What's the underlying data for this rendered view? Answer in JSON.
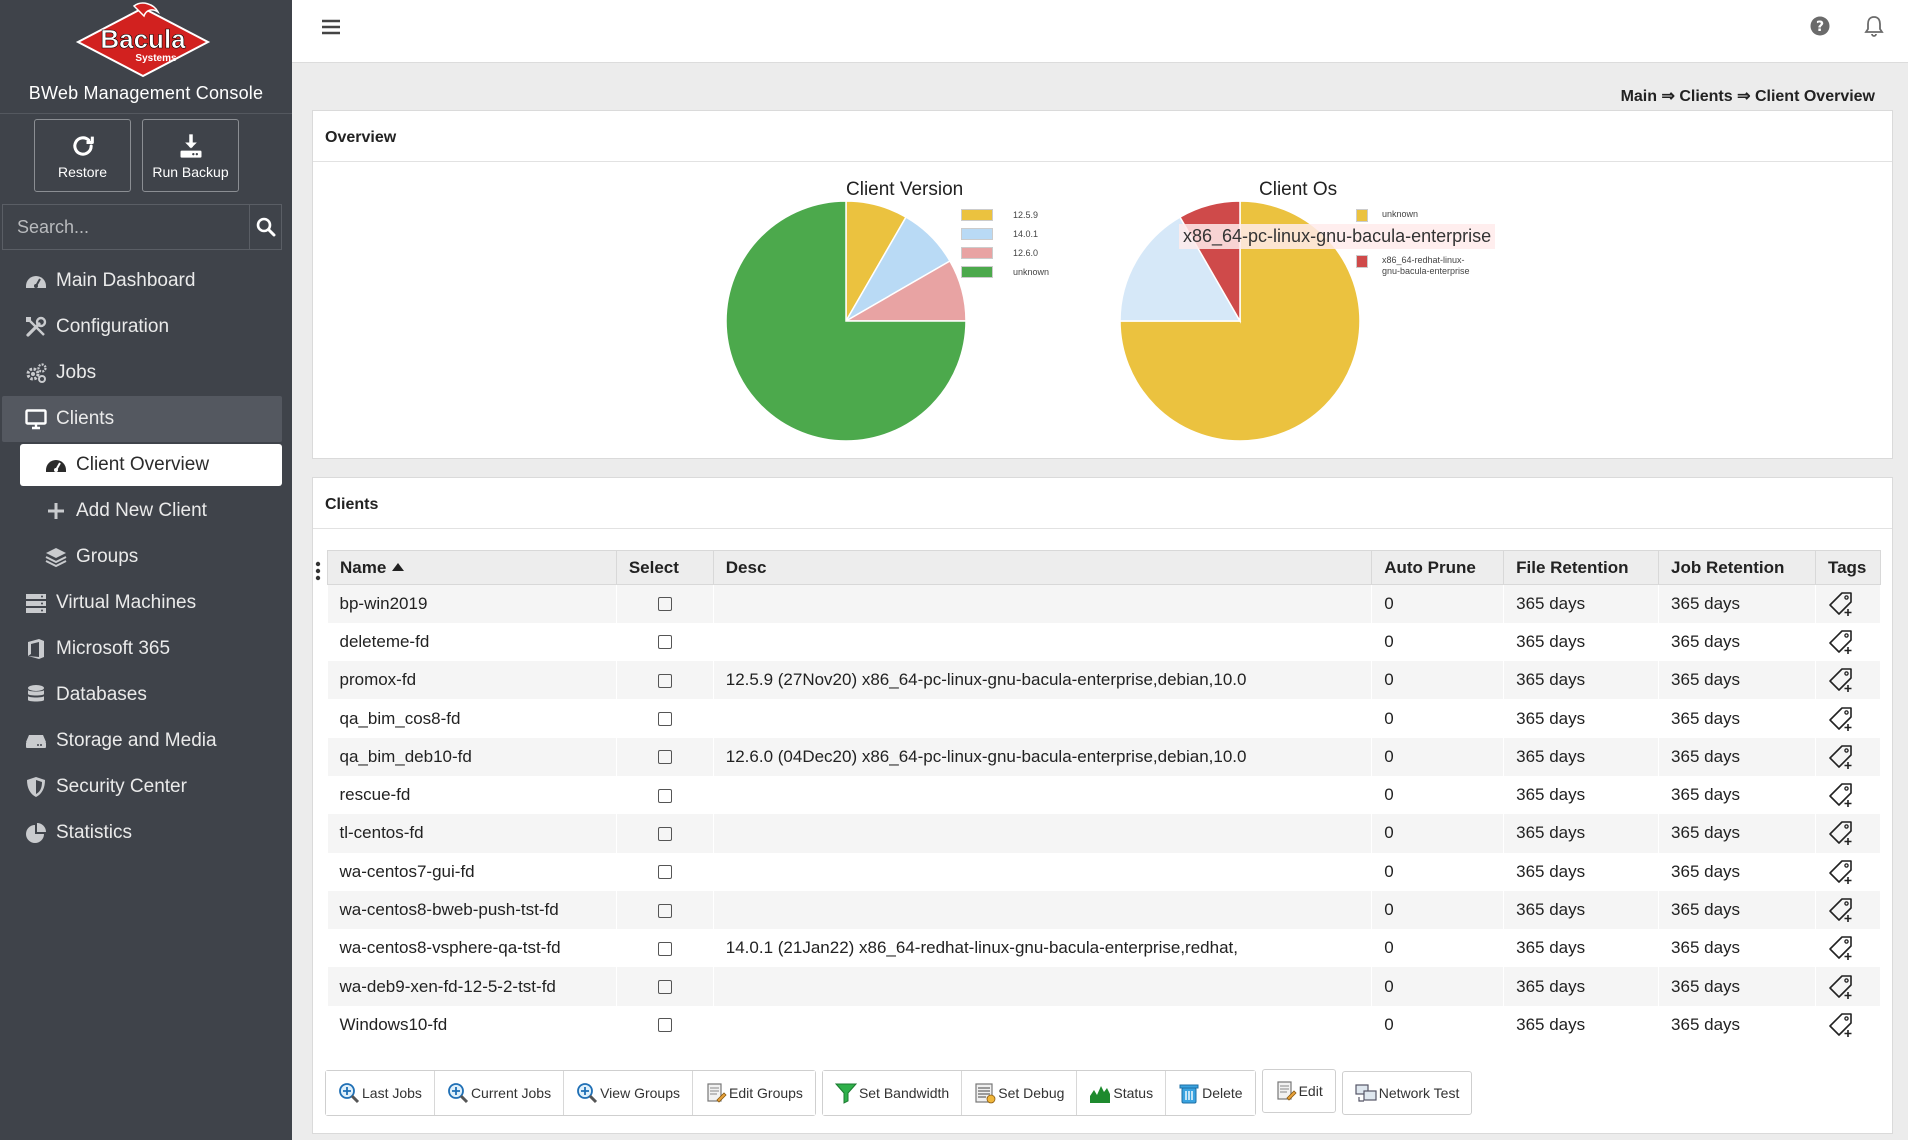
{
  "app": {
    "logo_text": "Bacula",
    "logo_subtext": "Systems",
    "console_title": "BWeb Management Console"
  },
  "quick_actions": {
    "restore": "Restore",
    "run_backup": "Run Backup"
  },
  "search": {
    "placeholder": "Search..."
  },
  "nav": {
    "main_dashboard": "Main Dashboard",
    "configuration": "Configuration",
    "jobs": "Jobs",
    "clients": "Clients",
    "client_overview": "Client Overview",
    "add_new_client": "Add New Client",
    "groups": "Groups",
    "virtual_machines": "Virtual Machines",
    "microsoft_365": "Microsoft 365",
    "databases": "Databases",
    "storage_and_media": "Storage and Media",
    "security_center": "Security Center",
    "statistics": "Statistics"
  },
  "breadcrumb": {
    "main": "Main",
    "sep": " ⇒ ",
    "clients": "Clients",
    "current": "Client Overview"
  },
  "overview": {
    "title": "Overview",
    "tooltip": "x86_64-pc-linux-gnu-bacula-enterprise"
  },
  "chart_data": [
    {
      "type": "pie",
      "title": "Client Version",
      "categories": [
        "12.5.9",
        "14.0.1",
        "12.6.0",
        "unknown"
      ],
      "values": [
        1,
        1,
        1,
        9
      ],
      "colors": [
        "#ebc23f",
        "#b9daf5",
        "#e8a3a3",
        "#4ca94c"
      ],
      "legend": "right"
    },
    {
      "type": "pie",
      "title": "Client Os",
      "categories": [
        "unknown",
        "x86_64-pc-linux-gnu-bacula-enterprise",
        "x86_64-redhat-linux-gnu-bacula-enterprise"
      ],
      "legend_labels": [
        "unknown",
        "x86_64-redhat-linux-\ngnu-bacula-enterprise"
      ],
      "values": [
        9,
        2,
        1
      ],
      "colors": [
        "#ebc23f",
        "#d6e8f8",
        "#cf4a4a"
      ],
      "legend": "right"
    }
  ],
  "clients": {
    "title": "Clients",
    "columns": {
      "name": "Name",
      "select": "Select",
      "desc": "Desc",
      "auto_prune": "Auto Prune",
      "file_retention": "File Retention",
      "job_retention": "Job Retention",
      "tags": "Tags"
    },
    "rows": [
      {
        "name": "bp-win2019",
        "desc": "",
        "auto_prune": "0",
        "file_retention": "365 days",
        "job_retention": "365 days"
      },
      {
        "name": "deleteme-fd",
        "desc": "",
        "auto_prune": "0",
        "file_retention": "365 days",
        "job_retention": "365 days"
      },
      {
        "name": "promox-fd",
        "desc": "12.5.9 (27Nov20) x86_64-pc-linux-gnu-bacula-enterprise,debian,10.0",
        "auto_prune": "0",
        "file_retention": "365 days",
        "job_retention": "365 days"
      },
      {
        "name": "qa_bim_cos8-fd",
        "desc": "",
        "auto_prune": "0",
        "file_retention": "365 days",
        "job_retention": "365 days"
      },
      {
        "name": "qa_bim_deb10-fd",
        "desc": "12.6.0 (04Dec20) x86_64-pc-linux-gnu-bacula-enterprise,debian,10.0",
        "auto_prune": "0",
        "file_retention": "365 days",
        "job_retention": "365 days"
      },
      {
        "name": "rescue-fd",
        "desc": "",
        "auto_prune": "0",
        "file_retention": "365 days",
        "job_retention": "365 days"
      },
      {
        "name": "tl-centos-fd",
        "desc": "",
        "auto_prune": "0",
        "file_retention": "365 days",
        "job_retention": "365 days"
      },
      {
        "name": "wa-centos7-gui-fd",
        "desc": "",
        "auto_prune": "0",
        "file_retention": "365 days",
        "job_retention": "365 days"
      },
      {
        "name": "wa-centos8-bweb-push-tst-fd",
        "desc": "",
        "auto_prune": "0",
        "file_retention": "365 days",
        "job_retention": "365 days"
      },
      {
        "name": "wa-centos8-vsphere-qa-tst-fd",
        "desc": "14.0.1 (21Jan22) x86_64-redhat-linux-gnu-bacula-enterprise,redhat,",
        "auto_prune": "0",
        "file_retention": "365 days",
        "job_retention": "365 days"
      },
      {
        "name": "wa-deb9-xen-fd-12-5-2-tst-fd",
        "desc": "",
        "auto_prune": "0",
        "file_retention": "365 days",
        "job_retention": "365 days"
      },
      {
        "name": "Windows10-fd",
        "desc": "",
        "auto_prune": "0",
        "file_retention": "365 days",
        "job_retention": "365 days"
      }
    ]
  },
  "actions": {
    "last_jobs": "Last Jobs",
    "current_jobs": "Current Jobs",
    "view_groups": "View Groups",
    "edit_groups": "Edit Groups",
    "set_bandwidth": "Set Bandwidth",
    "set_debug": "Set Debug",
    "status": "Status",
    "delete": "Delete",
    "edit": "Edit",
    "network_test": "Network Test"
  },
  "icons": {
    "restore": "refresh-icon",
    "run_backup": "download-icon",
    "search": "search-icon",
    "menu": "hamburger-icon",
    "help": "help-icon",
    "notifications": "bell-icon",
    "tag": "tag-plus-icon"
  }
}
